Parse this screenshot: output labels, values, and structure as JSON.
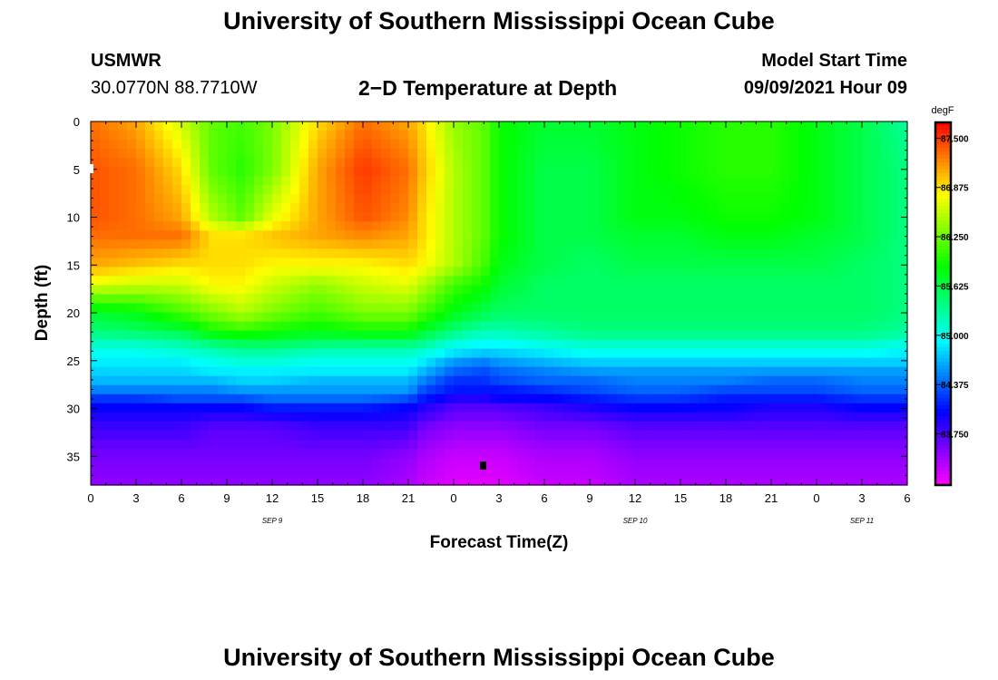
{
  "header": {
    "top_title": "University of Southern Mississippi Ocean Cube",
    "bottom_title": "University of Southern Mississippi Ocean Cube",
    "station": "USMWR",
    "coords": "30.0770N  88.7710W",
    "plot_title": "2−D Temperature at Depth",
    "model_start_label": "Model Start Time",
    "model_start_value": "09/09/2021 Hour 09"
  },
  "chart_data": {
    "type": "heatmap",
    "title": "2−D Temperature at Depth",
    "xlabel": "Forecast Time(Z)",
    "ylabel": "Depth (ft)",
    "x_tick_labels": [
      "0",
      "3",
      "6",
      "9",
      "12",
      "15",
      "18",
      "21",
      "0",
      "3",
      "6",
      "9",
      "12",
      "15",
      "18",
      "21",
      "0",
      "3",
      "6"
    ],
    "x_range_hours": [
      0,
      54
    ],
    "y_ticks": [
      0,
      5,
      10,
      15,
      20,
      25,
      30,
      35
    ],
    "y_tick_labels": [
      "0",
      "5",
      "10",
      "15",
      "20",
      "25",
      "30",
      "35"
    ],
    "y_range_ft": [
      0,
      38
    ],
    "date_labels": [
      {
        "text": "SEP 9",
        "hour": 12
      },
      {
        "text": "SEP 10",
        "hour": 36
      },
      {
        "text": "SEP 11",
        "hour": 51
      }
    ],
    "colorbar": {
      "units": "degF",
      "min": 83.1,
      "max": 87.7,
      "ticks": [
        87.5,
        86.875,
        86.25,
        85.625,
        85.0,
        84.375,
        83.75
      ],
      "tick_labels": [
        "87.500",
        "86.875",
        "86.250",
        "85.625",
        "85.000",
        "84.375",
        "83.750"
      ]
    },
    "depth_layers_ft": [
      0,
      5,
      10,
      12,
      15,
      17,
      20,
      22,
      23,
      24,
      25,
      26,
      27,
      28,
      29,
      30,
      32,
      35,
      38
    ],
    "time_hours": [
      0,
      3,
      6,
      8,
      10,
      12,
      15,
      18,
      21,
      22,
      24,
      26,
      27,
      30,
      33,
      36,
      39,
      42,
      45,
      48,
      51,
      54
    ],
    "temperature_degF": [
      [
        87.3,
        87.1,
        86.6,
        86.2,
        86.1,
        86.3,
        86.9,
        87.3,
        87.1,
        86.9,
        86.4,
        86.2,
        85.9,
        85.7,
        85.7,
        85.8,
        85.9,
        86.0,
        86.0,
        85.8,
        85.6,
        85.3
      ],
      [
        87.4,
        87.3,
        86.9,
        86.2,
        86.0,
        86.3,
        87.1,
        87.5,
        87.3,
        87.0,
        86.5,
        86.2,
        85.9,
        85.6,
        85.6,
        85.8,
        85.9,
        86.0,
        86.0,
        85.8,
        85.6,
        85.4
      ],
      [
        87.4,
        87.3,
        87.1,
        86.5,
        86.2,
        86.7,
        87.1,
        87.4,
        87.2,
        86.9,
        86.5,
        86.2,
        85.9,
        85.6,
        85.6,
        85.8,
        85.8,
        85.9,
        85.9,
        85.8,
        85.6,
        85.4
      ],
      [
        87.3,
        87.3,
        87.3,
        86.9,
        86.9,
        87.0,
        87.1,
        87.2,
        87.1,
        86.9,
        86.5,
        86.2,
        85.9,
        85.6,
        85.6,
        85.7,
        85.7,
        85.8,
        85.8,
        85.7,
        85.6,
        85.4
      ],
      [
        87.1,
        87.0,
        86.9,
        86.9,
        86.9,
        86.8,
        86.8,
        86.8,
        86.9,
        86.8,
        86.5,
        86.1,
        85.8,
        85.6,
        85.5,
        85.6,
        85.6,
        85.6,
        85.6,
        85.6,
        85.5,
        85.4
      ],
      [
        86.7,
        86.6,
        86.6,
        86.8,
        86.8,
        86.6,
        86.4,
        86.6,
        86.7,
        86.5,
        86.1,
        85.9,
        85.7,
        85.5,
        85.5,
        85.5,
        85.5,
        85.5,
        85.5,
        85.5,
        85.5,
        85.4
      ],
      [
        85.7,
        85.8,
        86.1,
        86.3,
        86.5,
        86.3,
        86.1,
        86.3,
        86.3,
        86.1,
        85.8,
        85.6,
        85.5,
        85.5,
        85.5,
        85.5,
        85.5,
        85.5,
        85.5,
        85.5,
        85.5,
        85.4
      ],
      [
        85.4,
        85.5,
        85.6,
        85.9,
        86.0,
        85.9,
        85.8,
        85.9,
        85.9,
        85.7,
        85.4,
        85.2,
        85.2,
        85.3,
        85.4,
        85.4,
        85.4,
        85.4,
        85.4,
        85.4,
        85.4,
        85.3
      ],
      [
        85.2,
        85.2,
        85.3,
        85.5,
        85.6,
        85.6,
        85.5,
        85.5,
        85.5,
        85.4,
        85.1,
        85.0,
        85.0,
        85.1,
        85.2,
        85.2,
        85.2,
        85.2,
        85.2,
        85.2,
        85.2,
        85.1
      ],
      [
        85.0,
        85.0,
        85.1,
        85.2,
        85.3,
        85.3,
        85.2,
        85.2,
        85.2,
        85.1,
        84.9,
        84.8,
        84.8,
        84.9,
        85.0,
        85.0,
        85.0,
        85.0,
        85.0,
        85.0,
        85.0,
        84.9
      ],
      [
        84.9,
        84.9,
        84.9,
        85.0,
        85.1,
        85.1,
        85.0,
        85.0,
        85.0,
        84.9,
        84.6,
        84.5,
        84.6,
        84.7,
        84.8,
        84.8,
        84.8,
        84.8,
        84.8,
        84.8,
        84.8,
        84.8
      ],
      [
        84.8,
        84.8,
        84.8,
        84.9,
        84.9,
        84.9,
        84.9,
        84.9,
        84.9,
        84.7,
        84.4,
        84.3,
        84.4,
        84.5,
        84.6,
        84.6,
        84.6,
        84.6,
        84.6,
        84.6,
        84.6,
        84.6
      ],
      [
        84.7,
        84.7,
        84.7,
        84.7,
        84.8,
        84.8,
        84.7,
        84.7,
        84.7,
        84.5,
        84.2,
        84.2,
        84.3,
        84.4,
        84.4,
        84.5,
        84.5,
        84.5,
        84.4,
        84.4,
        84.5,
        84.5
      ],
      [
        84.5,
        84.5,
        84.5,
        84.5,
        84.6,
        84.6,
        84.6,
        84.6,
        84.6,
        84.3,
        84.1,
        84.1,
        84.1,
        84.2,
        84.3,
        84.4,
        84.4,
        84.3,
        84.3,
        84.3,
        84.4,
        84.4
      ],
      [
        84.2,
        84.2,
        84.3,
        84.3,
        84.3,
        84.4,
        84.4,
        84.4,
        84.3,
        84.1,
        83.9,
        83.9,
        84.0,
        84.0,
        84.1,
        84.2,
        84.2,
        84.1,
        84.1,
        84.1,
        84.2,
        84.2
      ],
      [
        84.0,
        84.0,
        84.0,
        84.0,
        84.0,
        84.1,
        84.1,
        84.1,
        84.0,
        83.9,
        83.7,
        83.7,
        83.7,
        83.8,
        83.9,
        84.0,
        84.0,
        84.0,
        83.9,
        83.9,
        84.0,
        84.0
      ],
      [
        83.8,
        83.8,
        83.8,
        83.7,
        83.7,
        83.7,
        83.8,
        83.8,
        83.8,
        83.6,
        83.5,
        83.5,
        83.5,
        83.6,
        83.6,
        83.7,
        83.7,
        83.7,
        83.7,
        83.7,
        83.7,
        83.7
      ],
      [
        83.6,
        83.6,
        83.6,
        83.6,
        83.6,
        83.6,
        83.6,
        83.6,
        83.5,
        83.4,
        83.3,
        83.3,
        83.3,
        83.4,
        83.4,
        83.5,
        83.5,
        83.5,
        83.5,
        83.5,
        83.5,
        83.5
      ],
      [
        83.5,
        83.5,
        83.5,
        83.5,
        83.5,
        83.5,
        83.5,
        83.5,
        83.4,
        83.3,
        83.2,
        83.2,
        83.2,
        83.3,
        83.3,
        83.4,
        83.4,
        83.4,
        83.4,
        83.4,
        83.4,
        83.4
      ]
    ]
  }
}
